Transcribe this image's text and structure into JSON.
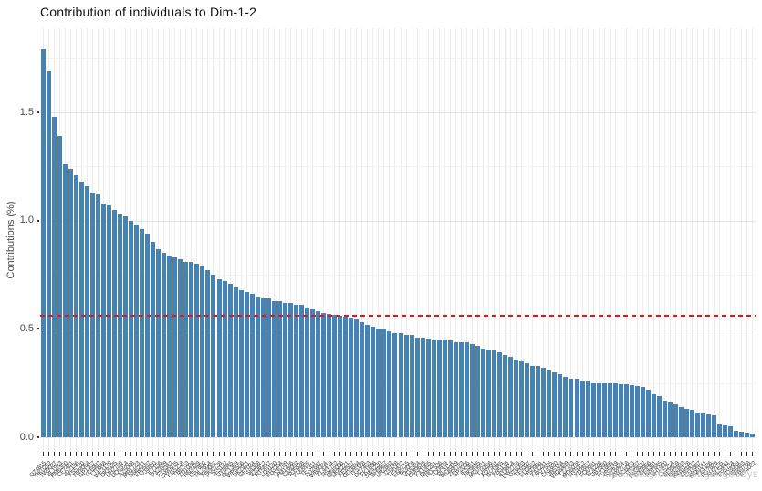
{
  "title": "Contribution of individuals to Dim-1-2",
  "colors": {
    "bar_fill": "#4682B4",
    "reference_line": "#EE1111",
    "grid_major": "#e3e3e3",
    "grid_minor": "#f2f2f2",
    "grid_vertical": "#ececec",
    "axis_text": "#4d4d4d",
    "tick_mark": "#333333",
    "title_text": "#111111",
    "watermark_text": "#c3c3c3"
  },
  "watermark": "https://blog.csdn.net/gangbobys",
  "chart_data": {
    "type": "bar",
    "title": "Contribution of individuals to Dim-1-2",
    "xlabel": "",
    "ylabel": "Contributions (%)",
    "ylim": [
      0,
      1.89
    ],
    "y_ticks": [
      0.0,
      0.5,
      1.0,
      1.5
    ],
    "y_tick_labels": [
      "0.0",
      "0.5",
      "1.0",
      "1.5"
    ],
    "y_minor_gridlines": [
      0.25,
      0.75,
      1.25,
      1.75
    ],
    "grid": true,
    "legend_position": "none",
    "reference_line": {
      "value": 0.56,
      "style": "dashed",
      "color": "#EE1111"
    },
    "bar_order": "descending",
    "categories_note": "x tick labels are individual IDs rotated 45°, overlapping and illegible at source resolution; placeholder IDs used",
    "categories": [
      "QZ4815",
      "HK0262",
      "TW9027",
      "BL1943",
      "RM6350",
      "CF7481",
      "JD2196",
      "XS5730",
      "NV8064",
      "GP1357",
      "YC6902",
      "LT0548",
      "WE3179",
      "OK8425",
      "UH2760",
      "DQ9314",
      "AZ5068",
      "MR1783",
      "SN6241",
      "EB0597",
      "VJ4830",
      "IL7156",
      "PX2609",
      "FY8342",
      "CW0975",
      "KG5218",
      "TB6753",
      "ZD1086",
      "HN3429",
      "QS7860",
      "ML2514",
      "XA9067",
      "RV0738",
      "JE5182",
      "UY6845",
      "OC1309",
      "WP8556",
      "DK2971",
      "GF7024",
      "SI4368",
      "BZ0812",
      "NT5647",
      "LQ9180",
      "EH3254",
      "YV6709",
      "AM1436",
      "CX8093",
      "RJ5528",
      "KU0865",
      "TF7311",
      "PD2647",
      "WB9084",
      "ZL4419",
      "HS1752",
      "QN6086",
      "MV3221",
      "XE8557",
      "OG0894",
      "IY5128",
      "DC7463",
      "FK1896",
      "SW4230",
      "BH9567",
      "UR2803",
      "JZ6148",
      "LP0472",
      "EN8715",
      "TA3059",
      "VG5384",
      "CM9628",
      "KX1965",
      "QB4201",
      "HD7536",
      "YO0879",
      "RL3114",
      "WU6449",
      "ZF8783",
      "SP2026",
      "IE5361",
      "NK9695",
      "MC0931",
      "TJ4266",
      "AQ7501",
      "GV1845",
      "XH5170",
      "BY8414",
      "DW2758",
      "OZ6093",
      "LF9327",
      "EU3662",
      "RS0906",
      "KA4241",
      "PV7585",
      "CN1820",
      "JB5164",
      "WQ8409",
      "TZ2743",
      "MG6078",
      "HY9312",
      "XD3657",
      "FO0991",
      "SL4226",
      "UB7560",
      "EK1805",
      "VR5149",
      "NZ8484",
      "AW2718",
      "QC6053",
      "IT9397",
      "DM3632",
      "GX0966",
      "YF4301",
      "RP7645",
      "JH1980",
      "LV5214",
      "BE8559",
      "OS2893",
      "KW6138",
      "ZN9472",
      "CU3807",
      "MQ0141",
      "TX4486",
      "PG7820",
      "AH2155",
      "WL5490",
      "EV8734",
      "SD3069",
      "IR6403",
      "FB9748",
      "NY4082"
    ],
    "values": [
      1.79,
      1.69,
      1.48,
      1.39,
      1.26,
      1.24,
      1.21,
      1.18,
      1.16,
      1.13,
      1.12,
      1.08,
      1.07,
      1.05,
      1.03,
      1.02,
      1.0,
      0.98,
      0.96,
      0.94,
      0.9,
      0.87,
      0.85,
      0.84,
      0.83,
      0.82,
      0.81,
      0.81,
      0.8,
      0.79,
      0.77,
      0.75,
      0.73,
      0.72,
      0.71,
      0.69,
      0.68,
      0.67,
      0.66,
      0.65,
      0.64,
      0.64,
      0.63,
      0.63,
      0.62,
      0.62,
      0.61,
      0.61,
      0.6,
      0.59,
      0.58,
      0.575,
      0.57,
      0.565,
      0.56,
      0.555,
      0.55,
      0.545,
      0.53,
      0.52,
      0.51,
      0.5,
      0.5,
      0.49,
      0.48,
      0.48,
      0.47,
      0.47,
      0.46,
      0.46,
      0.455,
      0.45,
      0.45,
      0.45,
      0.445,
      0.44,
      0.44,
      0.44,
      0.43,
      0.42,
      0.41,
      0.4,
      0.4,
      0.39,
      0.38,
      0.37,
      0.36,
      0.35,
      0.34,
      0.33,
      0.33,
      0.32,
      0.31,
      0.3,
      0.29,
      0.28,
      0.27,
      0.27,
      0.26,
      0.255,
      0.25,
      0.25,
      0.249,
      0.248,
      0.247,
      0.246,
      0.245,
      0.24,
      0.235,
      0.23,
      0.22,
      0.2,
      0.19,
      0.17,
      0.16,
      0.15,
      0.14,
      0.13,
      0.125,
      0.115,
      0.11,
      0.105,
      0.1,
      0.06,
      0.055,
      0.05,
      0.03,
      0.025,
      0.02,
      0.018
    ]
  }
}
